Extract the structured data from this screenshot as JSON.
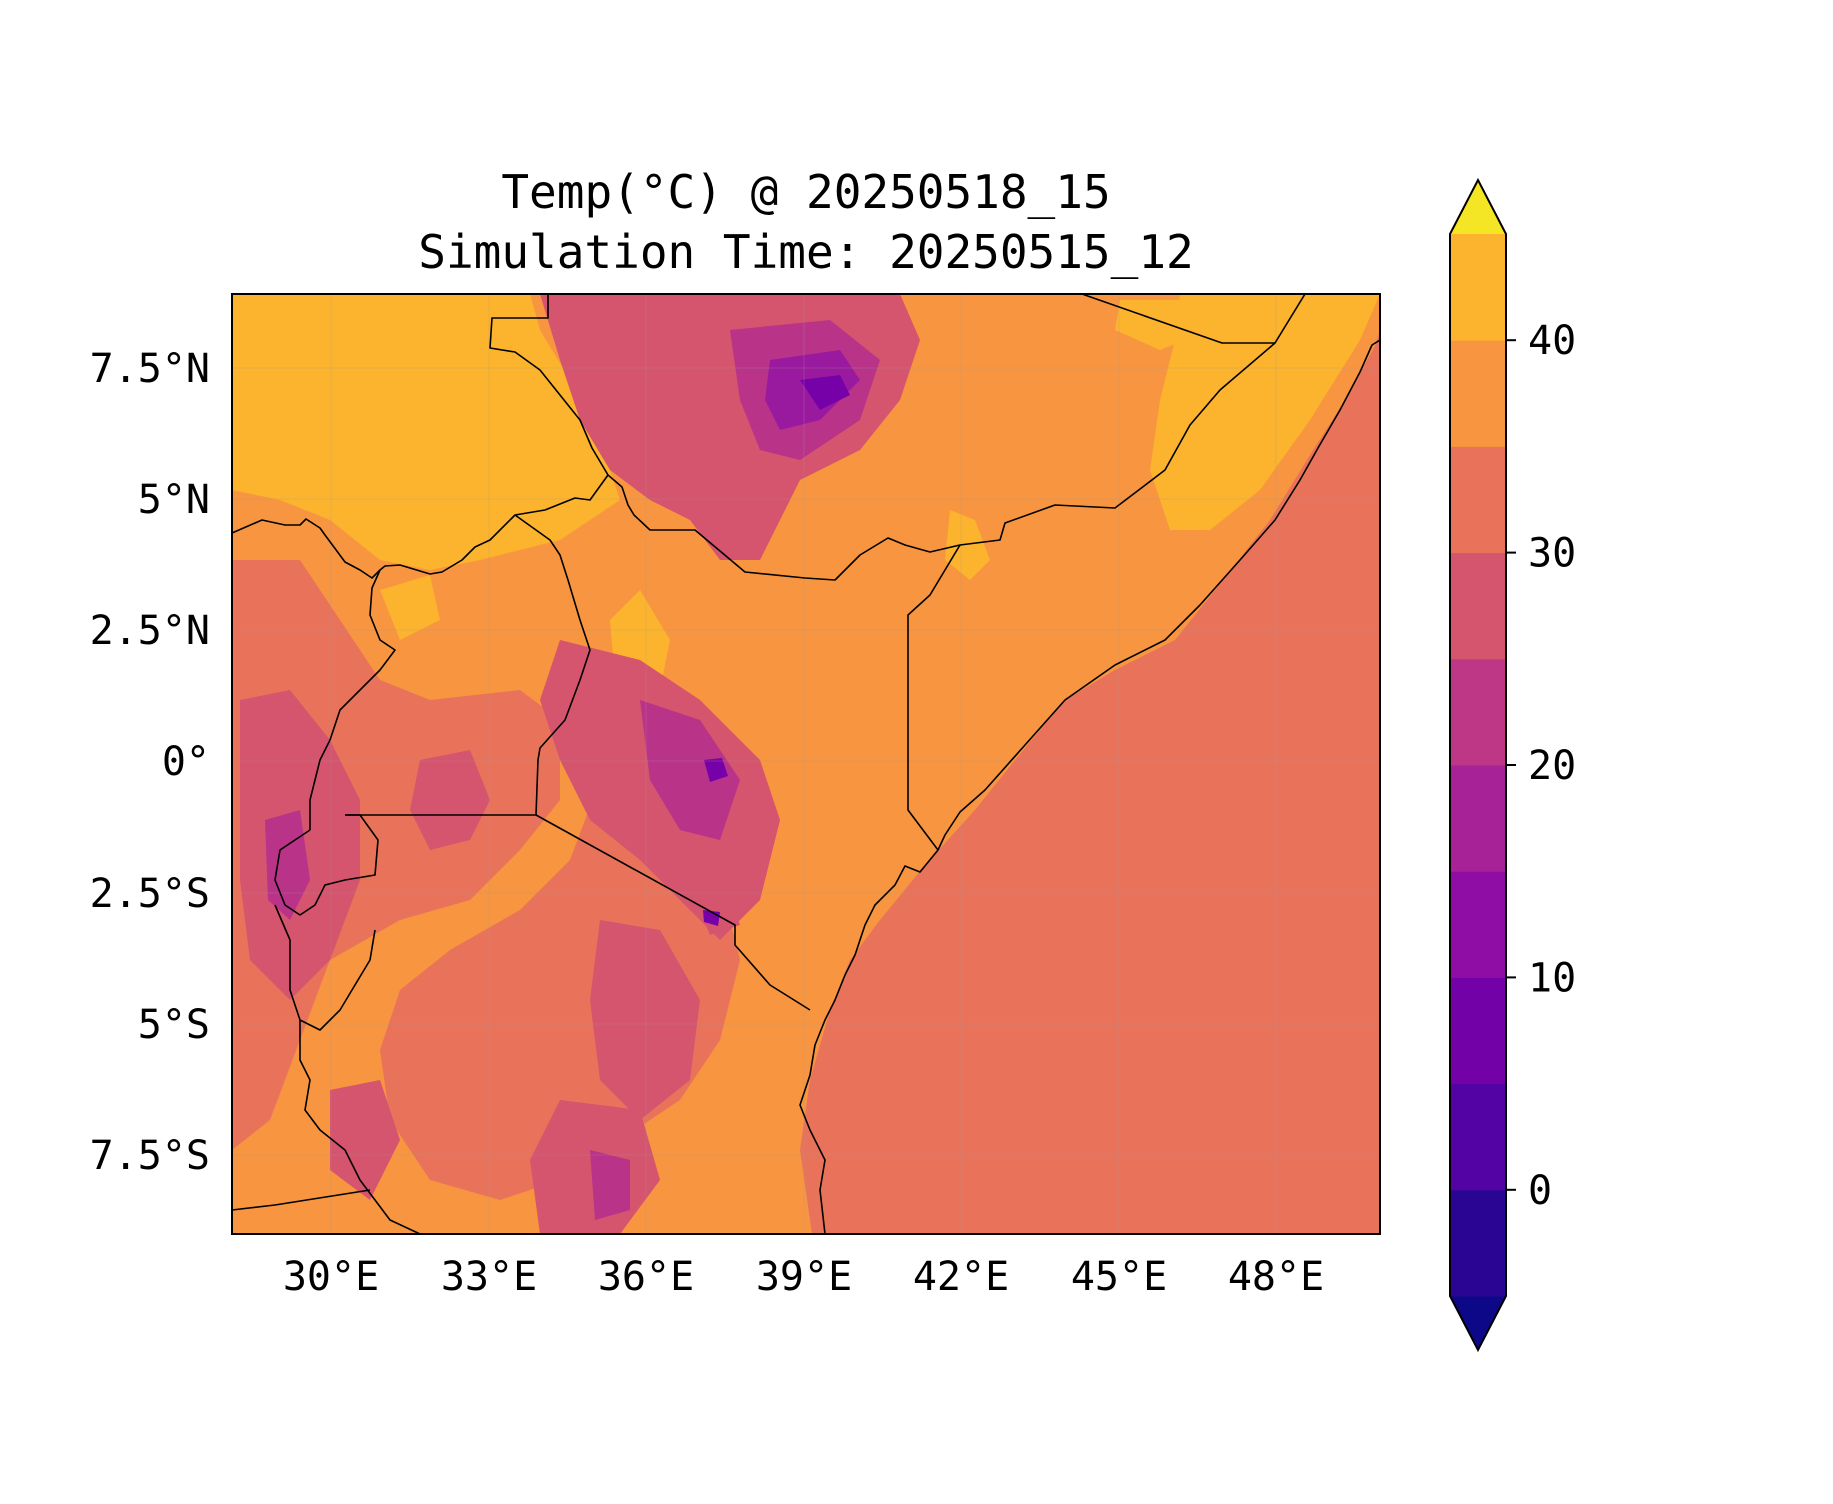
{
  "title_line1": "Temp(°C) @ 20250518_15",
  "title_line2": "Simulation Time: 20250515_12",
  "map": {
    "lon_range": [
      27.5,
      49.8
    ],
    "lat_range": [
      -9.0,
      9.0
    ],
    "x_ticks": [
      "30°E",
      "33°E",
      "36°E",
      "39°E",
      "42°E",
      "45°E",
      "48°E"
    ],
    "y_ticks": [
      "7.5°N",
      "5°N",
      "2.5°N",
      "0°",
      "2.5°S",
      "5°S",
      "7.5°S"
    ],
    "ocean_color": "#e8735a",
    "land_base_color": "#f79540",
    "hot_lowland_color": "#fcb32d",
    "highland_colors": [
      "#d5546e",
      "#b93389",
      "#9a1a9f",
      "#7701a8"
    ],
    "border_color": "#000000"
  },
  "colorbar": {
    "range": [
      -5,
      45
    ],
    "ticks": [
      "0",
      "10",
      "20",
      "30",
      "40"
    ],
    "extend": "both",
    "levels": [
      {
        "from": -10,
        "to": -5,
        "color": "#0d0887"
      },
      {
        "from": -5,
        "to": 0,
        "color": "#2a0593"
      },
      {
        "from": 0,
        "to": 5,
        "color": "#5302a3"
      },
      {
        "from": 5,
        "to": 10,
        "color": "#7301a8"
      },
      {
        "from": 10,
        "to": 15,
        "color": "#8f0da4"
      },
      {
        "from": 15,
        "to": 20,
        "color": "#a72197"
      },
      {
        "from": 20,
        "to": 25,
        "color": "#bd3786"
      },
      {
        "from": 25,
        "to": 30,
        "color": "#d5546e"
      },
      {
        "from": 30,
        "to": 35,
        "color": "#e8735a"
      },
      {
        "from": 35,
        "to": 40,
        "color": "#f79540"
      },
      {
        "from": 40,
        "to": 45,
        "color": "#fcb32d"
      },
      {
        "from": 45,
        "to": 50,
        "color": "#f4e625"
      }
    ]
  }
}
